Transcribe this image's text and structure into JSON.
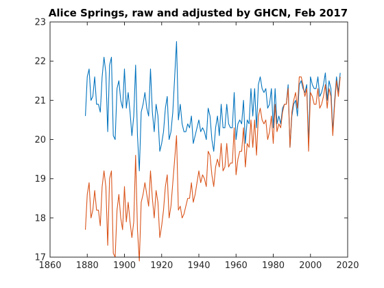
{
  "chart_data": {
    "type": "line",
    "title": "Alice Springs, raw and adjusted by GHCN, Feb 2017",
    "xlabel": "",
    "ylabel": "",
    "xlim": [
      1860,
      2020
    ],
    "ylim": [
      17,
      23
    ],
    "xticks": [
      1860,
      1880,
      1900,
      1920,
      1940,
      1960,
      1980,
      2000,
      2020
    ],
    "yticks": [
      17,
      18,
      19,
      20,
      21,
      22,
      23
    ],
    "grid": false,
    "legend": "none",
    "x": [
      1879,
      1880,
      1881,
      1882,
      1883,
      1884,
      1885,
      1886,
      1887,
      1888,
      1889,
      1890,
      1891,
      1892,
      1893,
      1894,
      1895,
      1896,
      1897,
      1898,
      1899,
      1900,
      1901,
      1902,
      1903,
      1904,
      1905,
      1906,
      1907,
      1908,
      1909,
      1910,
      1911,
      1912,
      1913,
      1914,
      1915,
      1916,
      1917,
      1918,
      1919,
      1920,
      1921,
      1922,
      1923,
      1924,
      1925,
      1926,
      1927,
      1928,
      1929,
      1930,
      1931,
      1932,
      1933,
      1934,
      1935,
      1936,
      1937,
      1938,
      1939,
      1940,
      1941,
      1942,
      1943,
      1944,
      1945,
      1946,
      1947,
      1948,
      1949,
      1950,
      1951,
      1952,
      1953,
      1954,
      1955,
      1956,
      1957,
      1958,
      1959,
      1960,
      1961,
      1962,
      1963,
      1964,
      1965,
      1966,
      1967,
      1968,
      1969,
      1970,
      1971,
      1972,
      1973,
      1974,
      1975,
      1976,
      1977,
      1978,
      1979,
      1980,
      1981,
      1982,
      1983,
      1984,
      1985,
      1986,
      1987,
      1988,
      1989,
      1990,
      1991,
      1992,
      1993,
      1994,
      1995,
      1996,
      1997,
      1998,
      1999,
      2000,
      2001,
      2002,
      2003,
      2004,
      2005,
      2006,
      2007,
      2008,
      2009,
      2010,
      2011,
      2012,
      2013,
      2014,
      2015,
      2016
    ],
    "series": [
      {
        "color": "#0072bd",
        "values": [
          20.6,
          21.6,
          21.8,
          21.0,
          21.1,
          21.6,
          20.9,
          20.9,
          20.7,
          21.6,
          22.1,
          21.7,
          20.2,
          21.9,
          22.1,
          20.1,
          20.0,
          21.3,
          21.5,
          21.0,
          20.8,
          21.8,
          20.8,
          21.2,
          20.7,
          20.1,
          20.6,
          21.9,
          20.1,
          19.2,
          20.7,
          20.9,
          21.2,
          20.8,
          20.6,
          21.8,
          20.7,
          20.2,
          20.9,
          20.6,
          19.7,
          19.9,
          20.2,
          20.8,
          21.1,
          20.0,
          20.2,
          20.7,
          21.6,
          22.5,
          20.5,
          20.9,
          20.4,
          20.2,
          20.2,
          20.4,
          20.3,
          20.6,
          19.9,
          20.1,
          20.3,
          20.5,
          20.2,
          20.3,
          20.2,
          20.0,
          20.8,
          20.6,
          20.0,
          19.7,
          20.3,
          20.6,
          20.1,
          20.9,
          20.3,
          20.3,
          20.9,
          20.4,
          20.3,
          20.3,
          21.2,
          20.0,
          20.4,
          20.5,
          20.4,
          21.0,
          19.9,
          20.5,
          20.4,
          21.3,
          20.6,
          21.3,
          20.3,
          21.4,
          21.6,
          21.3,
          21.2,
          21.3,
          20.8,
          20.9,
          21.3,
          20.3,
          21.3,
          20.4,
          20.6,
          20.4,
          20.8,
          20.9,
          20.9,
          21.4,
          19.8,
          20.6,
          20.9,
          21.0,
          20.6,
          21.4,
          21.5,
          21.3,
          21.2,
          21.4,
          19.9,
          21.6,
          21.4,
          21.3,
          21.3,
          21.6,
          21.1,
          21.2,
          21.4,
          21.7,
          21.0,
          21.5,
          21.3,
          20.2,
          21.0,
          21.6,
          21.2,
          21.7
        ]
      },
      {
        "color": "#d95319",
        "values": [
          17.7,
          18.6,
          18.9,
          18.0,
          18.2,
          18.7,
          18.2,
          18.2,
          17.8,
          18.8,
          19.2,
          18.8,
          17.3,
          19.0,
          19.2,
          17.1,
          17.0,
          18.2,
          18.6,
          18.0,
          17.7,
          18.8,
          17.9,
          18.4,
          17.9,
          17.5,
          17.9,
          19.6,
          17.7,
          16.9,
          18.4,
          18.6,
          18.9,
          18.6,
          18.3,
          19.2,
          18.5,
          18.0,
          18.7,
          18.4,
          17.5,
          17.8,
          18.2,
          18.8,
          19.1,
          18.0,
          18.3,
          18.9,
          19.5,
          20.1,
          18.2,
          18.3,
          18.0,
          18.1,
          18.3,
          18.5,
          18.5,
          18.9,
          18.4,
          18.6,
          18.9,
          19.2,
          18.9,
          19.1,
          19.0,
          18.8,
          19.7,
          19.6,
          19.1,
          18.8,
          19.3,
          19.5,
          19.3,
          19.9,
          19.2,
          19.3,
          19.9,
          19.3,
          19.4,
          19.4,
          20.3,
          19.1,
          19.5,
          19.7,
          19.7,
          20.3,
          19.3,
          19.9,
          19.8,
          20.5,
          19.8,
          20.5,
          19.6,
          20.6,
          20.8,
          20.5,
          20.4,
          20.5,
          20.0,
          20.2,
          20.6,
          19.9,
          20.9,
          20.2,
          20.4,
          20.3,
          20.7,
          20.9,
          20.9,
          21.3,
          19.8,
          20.7,
          21.0,
          21.2,
          20.8,
          21.6,
          21.6,
          21.4,
          21.1,
          21.3,
          19.7,
          21.2,
          21.1,
          20.9,
          20.9,
          21.3,
          20.8,
          20.9,
          21.1,
          21.4,
          20.8,
          21.3,
          21.1,
          20.1,
          20.9,
          21.5,
          21.1,
          21.6
        ]
      }
    ]
  }
}
